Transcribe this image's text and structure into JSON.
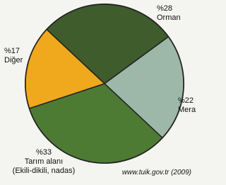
{
  "chart_data": {
    "type": "pie",
    "categories": [
      "Orman",
      "Mera",
      "Tarım alanı\n(Ekili-dikili, nadas)",
      "Diğer"
    ],
    "values": [
      28,
      22,
      33,
      17
    ],
    "value_labels": [
      "%28",
      "%22",
      "%33",
      "%17"
    ],
    "colors": [
      "#3f5c2c",
      "#9db8a8",
      "#4e7b33",
      "#f0a81c"
    ],
    "source": "www.tuik.gov.tr (2009)"
  }
}
